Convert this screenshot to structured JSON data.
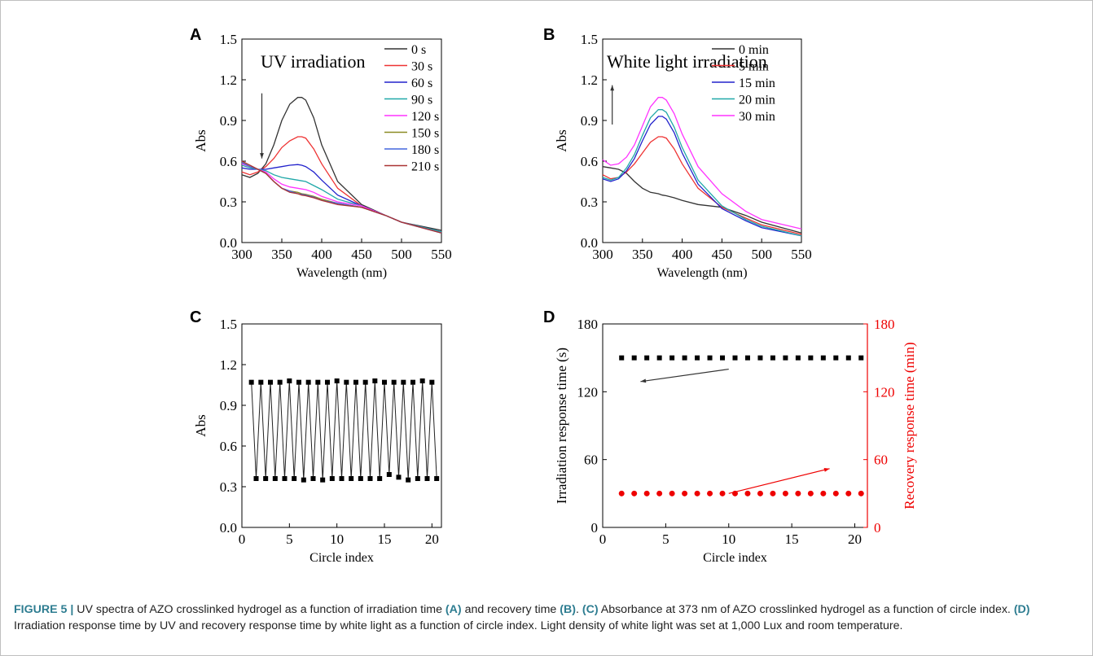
{
  "chart_data": [
    {
      "panel": "A",
      "type": "line",
      "annotation": "UV irradiation",
      "xlabel": "Wavelength (nm)",
      "ylabel": "Abs",
      "xlim": [
        300,
        550
      ],
      "ylim": [
        0.0,
        1.5
      ],
      "xticks": [
        300,
        350,
        400,
        450,
        500,
        550
      ],
      "yticks": [
        0.0,
        0.3,
        0.6,
        0.9,
        1.2,
        1.5
      ],
      "legend_position": "top-right",
      "x": [
        300,
        310,
        320,
        330,
        340,
        350,
        360,
        370,
        375,
        380,
        390,
        400,
        420,
        450,
        480,
        500,
        550
      ],
      "series": [
        {
          "name": "0 s",
          "color": "#333333",
          "values": [
            0.5,
            0.48,
            0.51,
            0.58,
            0.72,
            0.9,
            1.02,
            1.07,
            1.07,
            1.05,
            0.92,
            0.72,
            0.45,
            0.28,
            0.2,
            0.15,
            0.09
          ]
        },
        {
          "name": "30 s",
          "color": "#ee3333",
          "values": [
            0.52,
            0.5,
            0.52,
            0.56,
            0.62,
            0.7,
            0.75,
            0.78,
            0.78,
            0.77,
            0.69,
            0.58,
            0.4,
            0.27,
            0.2,
            0.15,
            0.08
          ]
        },
        {
          "name": "60 s",
          "color": "#2222cc",
          "values": [
            0.55,
            0.54,
            0.54,
            0.54,
            0.55,
            0.56,
            0.57,
            0.575,
            0.57,
            0.56,
            0.52,
            0.46,
            0.35,
            0.27,
            0.2,
            0.15,
            0.08
          ]
        },
        {
          "name": "90 s",
          "color": "#20a8a8",
          "values": [
            0.57,
            0.55,
            0.54,
            0.53,
            0.5,
            0.48,
            0.47,
            0.46,
            0.455,
            0.45,
            0.42,
            0.39,
            0.32,
            0.27,
            0.2,
            0.15,
            0.08
          ]
        },
        {
          "name": "120 s",
          "color": "#ff33ff",
          "values": [
            0.58,
            0.56,
            0.54,
            0.52,
            0.47,
            0.43,
            0.41,
            0.4,
            0.395,
            0.39,
            0.37,
            0.34,
            0.3,
            0.27,
            0.2,
            0.15,
            0.07
          ]
        },
        {
          "name": "150 s",
          "color": "#8a8a22",
          "values": [
            0.59,
            0.56,
            0.54,
            0.51,
            0.45,
            0.4,
            0.38,
            0.37,
            0.36,
            0.355,
            0.34,
            0.32,
            0.29,
            0.26,
            0.2,
            0.15,
            0.07
          ]
        },
        {
          "name": "180 s",
          "color": "#4466dd",
          "values": [
            0.59,
            0.56,
            0.54,
            0.51,
            0.45,
            0.4,
            0.38,
            0.36,
            0.355,
            0.35,
            0.335,
            0.31,
            0.29,
            0.26,
            0.2,
            0.15,
            0.07
          ]
        },
        {
          "name": "210 s",
          "color": "#aa3333",
          "values": [
            0.6,
            0.57,
            0.54,
            0.51,
            0.45,
            0.4,
            0.37,
            0.36,
            0.35,
            0.345,
            0.33,
            0.31,
            0.28,
            0.26,
            0.2,
            0.15,
            0.07
          ]
        }
      ],
      "arrow": {
        "x": 325,
        "y_from": 1.1,
        "y_to": 0.62
      }
    },
    {
      "panel": "B",
      "type": "line",
      "annotation": "White light irradiation",
      "xlabel": "Wavelength (nm)",
      "ylabel": "Abs",
      "xlim": [
        300,
        550
      ],
      "ylim": [
        0.0,
        1.5
      ],
      "xticks": [
        300,
        350,
        400,
        450,
        500,
        550
      ],
      "yticks": [
        0.0,
        0.3,
        0.6,
        0.9,
        1.2,
        1.5
      ],
      "legend_position": "top-right",
      "x": [
        300,
        310,
        320,
        330,
        340,
        350,
        360,
        370,
        375,
        380,
        390,
        400,
        420,
        450,
        480,
        500,
        550
      ],
      "series": [
        {
          "name": "0 min",
          "color": "#333333",
          "values": [
            0.56,
            0.55,
            0.54,
            0.51,
            0.45,
            0.4,
            0.37,
            0.36,
            0.35,
            0.345,
            0.33,
            0.31,
            0.28,
            0.26,
            0.2,
            0.15,
            0.07
          ]
        },
        {
          "name": "5 min",
          "color": "#ee3333",
          "values": [
            0.5,
            0.47,
            0.48,
            0.52,
            0.58,
            0.66,
            0.74,
            0.78,
            0.78,
            0.77,
            0.69,
            0.58,
            0.4,
            0.26,
            0.18,
            0.13,
            0.06
          ]
        },
        {
          "name": "15 min",
          "color": "#2222cc",
          "values": [
            0.47,
            0.45,
            0.47,
            0.53,
            0.62,
            0.75,
            0.87,
            0.93,
            0.93,
            0.91,
            0.81,
            0.66,
            0.43,
            0.25,
            0.16,
            0.11,
            0.05
          ]
        },
        {
          "name": "20 min",
          "color": "#20a8a8",
          "values": [
            0.48,
            0.46,
            0.48,
            0.55,
            0.65,
            0.79,
            0.92,
            0.98,
            0.98,
            0.96,
            0.85,
            0.7,
            0.46,
            0.27,
            0.17,
            0.12,
            0.05
          ]
        },
        {
          "name": "30 min",
          "color": "#ff33ff",
          "values": [
            0.61,
            0.57,
            0.58,
            0.63,
            0.72,
            0.86,
            1.0,
            1.07,
            1.07,
            1.05,
            0.95,
            0.8,
            0.56,
            0.36,
            0.23,
            0.17,
            0.1
          ]
        }
      ],
      "arrow": {
        "x": 312,
        "y_from": 0.87,
        "y_to": 1.16
      }
    },
    {
      "panel": "C",
      "type": "line",
      "xlabel": "Circle index",
      "ylabel": "Abs",
      "xlim": [
        0,
        21
      ],
      "ylim": [
        0.0,
        1.5
      ],
      "xticks": [
        0,
        5,
        10,
        15,
        20
      ],
      "yticks": [
        0.0,
        0.3,
        0.6,
        0.9,
        1.2,
        1.5
      ],
      "x": [
        1,
        1.5,
        2,
        2.5,
        3,
        3.5,
        4,
        4.5,
        5,
        5.5,
        6,
        6.5,
        7,
        7.5,
        8,
        8.5,
        9,
        9.5,
        10,
        10.5,
        11,
        11.5,
        12,
        12.5,
        13,
        13.5,
        14,
        14.5,
        15,
        15.5,
        16,
        16.5,
        17,
        17.5,
        18,
        18.5,
        19,
        19.5,
        20,
        20.5
      ],
      "values": [
        1.07,
        0.36,
        1.07,
        0.36,
        1.07,
        0.36,
        1.07,
        0.36,
        1.08,
        0.36,
        1.07,
        0.35,
        1.07,
        0.36,
        1.07,
        0.35,
        1.07,
        0.36,
        1.08,
        0.36,
        1.07,
        0.36,
        1.07,
        0.36,
        1.07,
        0.36,
        1.08,
        0.36,
        1.07,
        0.39,
        1.07,
        0.37,
        1.07,
        0.35,
        1.07,
        0.36,
        1.08,
        0.36,
        1.07,
        0.36
      ]
    },
    {
      "panel": "D",
      "type": "scatter",
      "xlabel": "Circle index",
      "ylabel": "Irradiation response time (s)",
      "ylabel_right": "Recovery response time (min)",
      "xlim": [
        0,
        21
      ],
      "ylim": [
        0,
        180
      ],
      "ylim_right": [
        0,
        180
      ],
      "xticks": [
        0,
        5,
        10,
        15,
        20
      ],
      "yticks": [
        0,
        60,
        120,
        180
      ],
      "series": [
        {
          "name": "Irradiation response time",
          "color": "#000000",
          "marker": "square",
          "axis": "left",
          "x": [
            1.5,
            2.5,
            3.5,
            4.5,
            5.5,
            6.5,
            7.5,
            8.5,
            9.5,
            10.5,
            11.5,
            12.5,
            13.5,
            14.5,
            15.5,
            16.5,
            17.5,
            18.5,
            19.5,
            20.5
          ],
          "values": [
            150,
            150,
            150,
            150,
            150,
            150,
            150,
            150,
            150,
            150,
            150,
            150,
            150,
            150,
            150,
            150,
            150,
            150,
            150,
            150
          ]
        },
        {
          "name": "Recovery response time",
          "color": "#ee0000",
          "marker": "circle",
          "axis": "right",
          "x": [
            1.5,
            2.5,
            3.5,
            4.5,
            5.5,
            6.5,
            7.5,
            8.5,
            9.5,
            10.5,
            11.5,
            12.5,
            13.5,
            14.5,
            15.5,
            16.5,
            17.5,
            18.5,
            19.5,
            20.5
          ],
          "values": [
            30,
            30,
            30,
            30,
            30,
            30,
            30,
            30,
            30,
            30,
            30,
            30,
            30,
            30,
            30,
            30,
            30,
            30,
            30,
            30
          ]
        }
      ],
      "arrows": [
        {
          "color": "#333333",
          "from": [
            10,
            140
          ],
          "to": [
            3,
            129
          ]
        },
        {
          "color": "#ee0000",
          "from": [
            10,
            30
          ],
          "to": [
            18,
            52
          ]
        }
      ]
    }
  ],
  "caption": {
    "label": "FIGURE 5 |",
    "t1": " UV spectra of AZO crosslinked hydrogel as a function of irradiation time ",
    "refA": "(A)",
    "t2": " and recovery time ",
    "refB": "(B)",
    "t3": ". ",
    "refC": "(C)",
    "t4": " Absorbance at 373 nm of AZO crosslinked hydrogel as a function of circle index. ",
    "refD": "(D)",
    "t5": " Irradiation response time by UV and recovery response time by white light as a function of circle index. Light density of white light was set at 1,000 Lux and room temperature."
  }
}
